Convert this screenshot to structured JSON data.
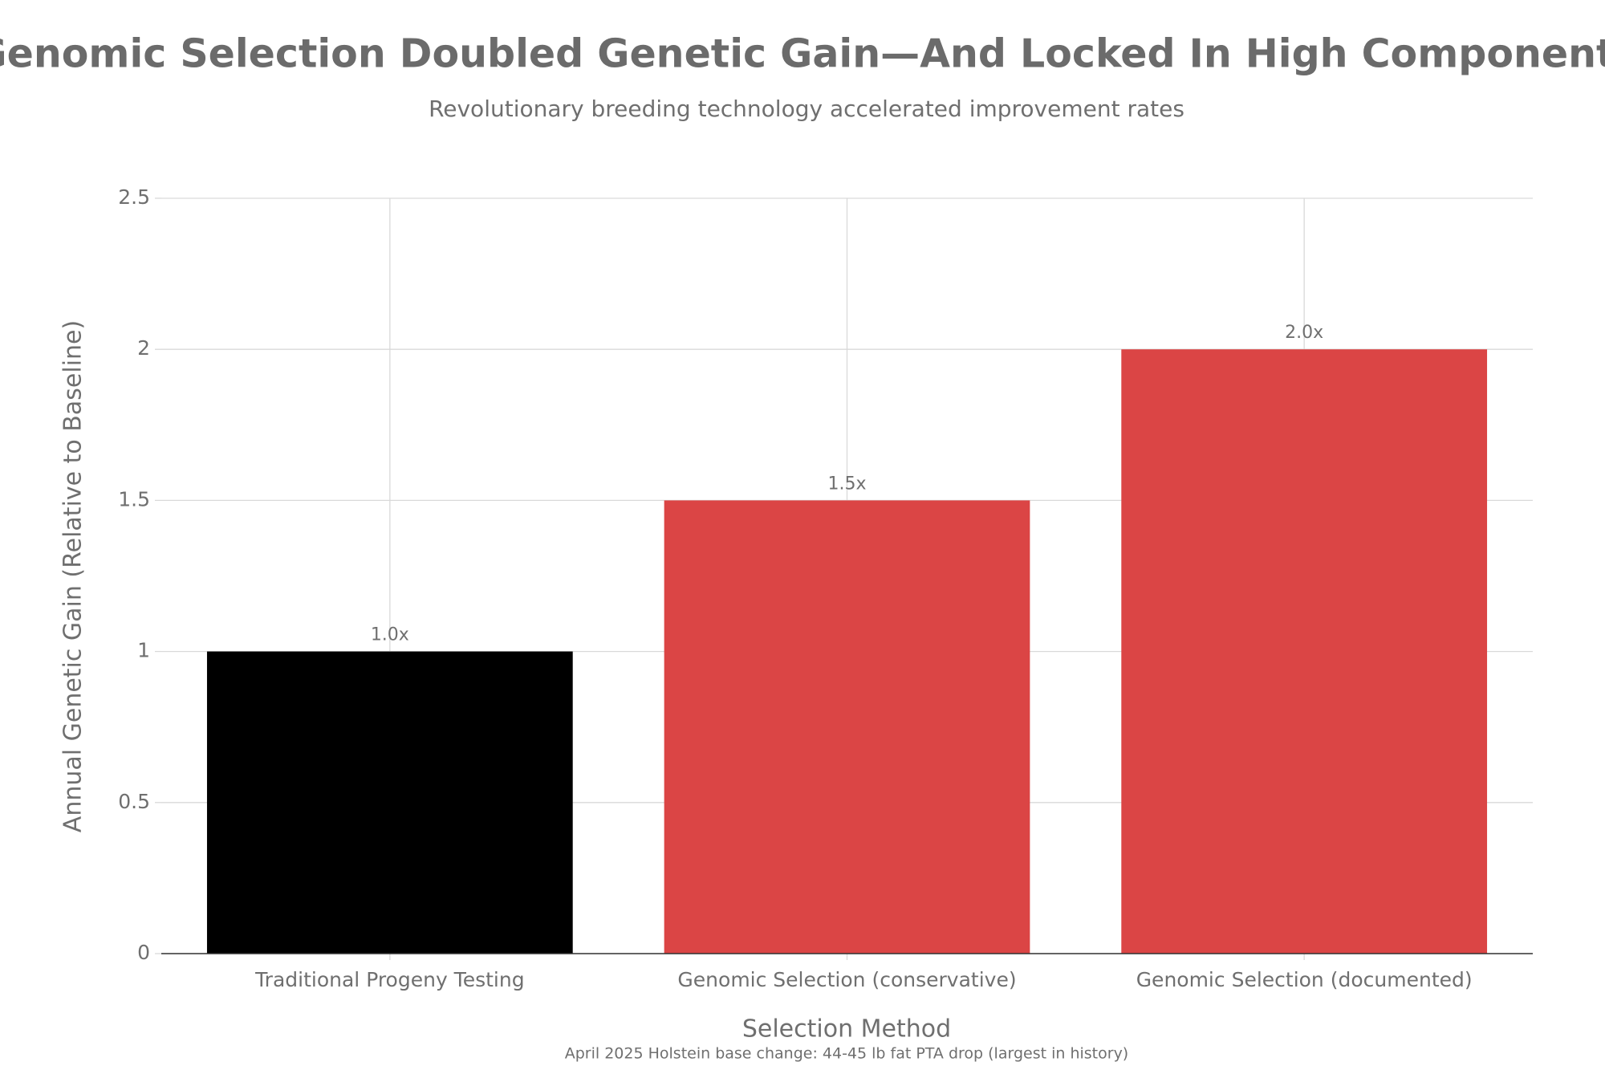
{
  "chart_data": {
    "type": "bar",
    "title": "Genomic Selection Doubled Genetic Gain—And Locked In High Components",
    "subtitle": "Revolutionary breeding technology accelerated improvement rates",
    "x_label": "Selection Method",
    "y_label": "Annual Genetic Gain (Relative to Baseline)",
    "annotation": "April 2025 Holstein base change: 44-45 lb fat PTA drop (largest in history)",
    "categories": [
      "Traditional Progeny Testing",
      "Genomic Selection (conservative)",
      "Genomic Selection (documented)"
    ],
    "values": [
      1,
      1.5,
      2
    ],
    "value_labels": [
      "1.0x",
      "1.5x",
      "2.0x"
    ],
    "colors": [
      "#000000",
      "#db4545",
      "#db4545"
    ],
    "ylim": [
      0,
      2.5
    ],
    "yticks": [
      0,
      0.5,
      1,
      1.5,
      2,
      2.5
    ],
    "grid": true
  }
}
